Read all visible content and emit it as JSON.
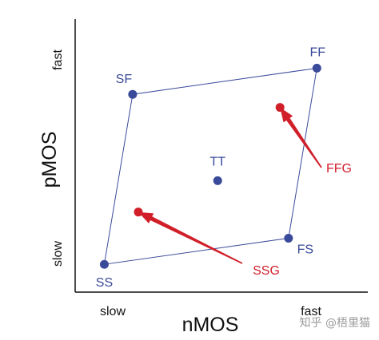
{
  "chart_data": {
    "type": "scatter",
    "xlabel": "nMOS",
    "ylabel": "pMOS",
    "x_ticks": {
      "low": "slow",
      "high": "fast"
    },
    "y_ticks": {
      "low": "slow",
      "high": "fast"
    },
    "corners": [
      {
        "label": "SS",
        "nmos": 0.1,
        "pmos": 0.1
      },
      {
        "label": "SF",
        "nmos": 0.2,
        "pmos": 0.75
      },
      {
        "label": "TT",
        "nmos": 0.5,
        "pmos": 0.42
      },
      {
        "label": "FS",
        "nmos": 0.75,
        "pmos": 0.2
      },
      {
        "label": "FF",
        "nmos": 0.85,
        "pmos": 0.85
      }
    ],
    "extra_points": [
      {
        "label": "SSG",
        "nmos": 0.22,
        "pmos": 0.3
      },
      {
        "label": "FFG",
        "nmos": 0.72,
        "pmos": 0.7
      }
    ],
    "colors": {
      "corner": "#3a4a9a",
      "extra": "#d11f2a"
    }
  },
  "watermark": "知乎 @梧里猫"
}
